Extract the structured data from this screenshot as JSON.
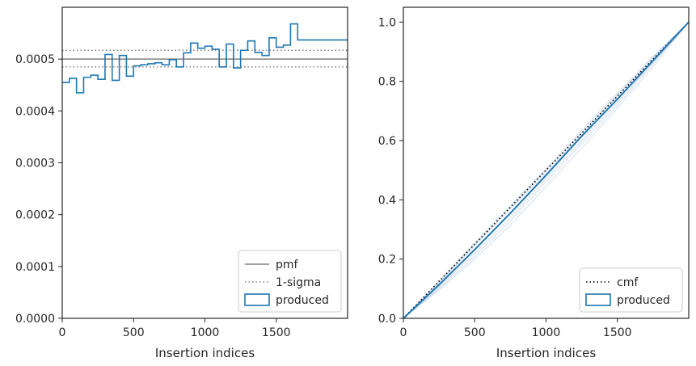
{
  "colors": {
    "produced": "#1f77b4",
    "pmf": "#808080",
    "sigma": "#808080",
    "cmf": "#000000",
    "faint_draws": "#c7d6ea",
    "frame": "#262626"
  },
  "chart_data": [
    {
      "type": "line",
      "plot": "histogram-panel",
      "xlabel": "Insertion indices",
      "ylabel": "",
      "xlim": [
        0,
        2000
      ],
      "ylim": [
        0,
        0.0006
      ],
      "xticks": [
        0,
        500,
        1000,
        1500
      ],
      "yticks": [
        0.0,
        0.0001,
        0.0002,
        0.0003,
        0.0004,
        0.0005
      ],
      "xtick_labels": [
        "0",
        "500",
        "1000",
        "1500"
      ],
      "ytick_labels": [
        "0.0000",
        "0.0001",
        "0.0002",
        "0.0003",
        "0.0004",
        "0.0005"
      ],
      "grid": false,
      "legend_position": "lower right",
      "legend": [
        "pmf",
        "1-sigma",
        "produced"
      ],
      "pmf": 0.0005,
      "sigma_band": [
        0.000485,
        0.000517
      ],
      "series": [
        {
          "name": "produced",
          "style": "step",
          "bin_edges": [
            0,
            50,
            100,
            150,
            200,
            250,
            300,
            350,
            400,
            450,
            500,
            550,
            600,
            650,
            700,
            750,
            800,
            850,
            900,
            950,
            1000,
            1050,
            1100,
            1150,
            1200,
            1250,
            1300,
            1350,
            1400,
            1450,
            1500,
            1550,
            1600,
            1650,
            1700,
            1750,
            1800,
            1850,
            1900,
            1950,
            2000
          ],
          "values": [
            0.000455,
            0.000463,
            0.000435,
            0.000465,
            0.000469,
            0.000461,
            0.000509,
            0.000459,
            0.000507,
            0.000467,
            0.000487,
            0.000489,
            0.000491,
            0.000493,
            0.000489,
            0.000499,
            0.000485,
            0.000512,
            0.000531,
            0.000521,
            0.000525,
            0.000519,
            0.000485,
            0.000529,
            0.000483,
            0.000517,
            0.000535,
            0.000513,
            0.000507,
            0.000541,
            0.000523,
            0.000527,
            0.000568,
            0.000537,
            0.000537,
            0.000537,
            0.000537,
            0.000537,
            0.000537,
            0.000537
          ]
        }
      ]
    },
    {
      "type": "line",
      "plot": "cumulative-panel",
      "xlabel": "Insertion indices",
      "ylabel": "",
      "xlim": [
        0,
        2000
      ],
      "ylim": [
        0,
        1.05
      ],
      "xticks": [
        0,
        500,
        1000,
        1500
      ],
      "yticks": [
        0.0,
        0.2,
        0.4,
        0.6,
        0.8,
        1.0
      ],
      "xtick_labels": [
        "0",
        "500",
        "1000",
        "1500"
      ],
      "ytick_labels": [
        "0.0",
        "0.2",
        "0.4",
        "0.6",
        "0.8",
        "1.0"
      ],
      "grid": false,
      "legend_position": "lower right",
      "legend": [
        "cmf",
        "produced"
      ],
      "series": [
        {
          "name": "cmf",
          "style": "dotted",
          "x": [
            0,
            2000
          ],
          "y": [
            0,
            1.0
          ]
        },
        {
          "name": "produced",
          "style": "solid",
          "x": [
            0,
            250,
            500,
            750,
            1000,
            1250,
            1500,
            1750,
            2000
          ],
          "y": [
            0,
            0.113,
            0.232,
            0.355,
            0.483,
            0.615,
            0.74,
            0.87,
            1.0
          ]
        },
        {
          "name": "",
          "style": "faint",
          "x": [
            0,
            250,
            500,
            750,
            1000,
            1250,
            1500,
            1750,
            2000
          ],
          "y": [
            0,
            0.1,
            0.21,
            0.33,
            0.46,
            0.59,
            0.72,
            0.86,
            1.0
          ]
        },
        {
          "name": "",
          "style": "faint",
          "x": [
            0,
            250,
            500,
            750,
            1000,
            1250,
            1500,
            1750,
            2000
          ],
          "y": [
            0,
            0.12,
            0.25,
            0.37,
            0.49,
            0.62,
            0.75,
            0.88,
            1.0
          ]
        },
        {
          "name": "",
          "style": "faint",
          "x": [
            0,
            250,
            500,
            750,
            1000,
            1250,
            1500,
            1750,
            2000
          ],
          "y": [
            0,
            0.105,
            0.22,
            0.34,
            0.47,
            0.6,
            0.73,
            0.865,
            1.0
          ]
        },
        {
          "name": "",
          "style": "faint",
          "x": [
            0,
            250,
            500,
            750,
            1000,
            1250,
            1500,
            1750,
            2000
          ],
          "y": [
            0,
            0.118,
            0.245,
            0.372,
            0.5,
            0.628,
            0.755,
            0.878,
            1.0
          ]
        },
        {
          "name": "",
          "style": "faint",
          "x": [
            0,
            250,
            500,
            750,
            1000,
            1250,
            1500,
            1750,
            2000
          ],
          "y": [
            0,
            0.095,
            0.2,
            0.315,
            0.445,
            0.575,
            0.71,
            0.85,
            1.0
          ]
        },
        {
          "name": "",
          "style": "faint",
          "x": [
            0,
            250,
            500,
            750,
            1000,
            1250,
            1500,
            1750,
            2000
          ],
          "y": [
            0,
            0.125,
            0.255,
            0.38,
            0.505,
            0.635,
            0.76,
            0.885,
            1.0
          ]
        }
      ]
    }
  ]
}
